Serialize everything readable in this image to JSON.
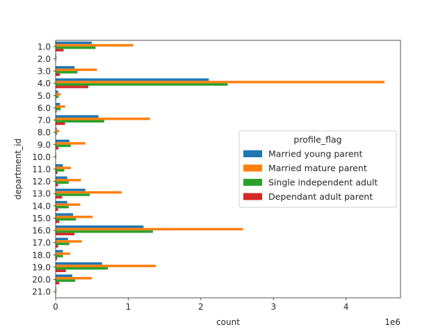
{
  "chart_data": {
    "type": "bar",
    "orientation": "horizontal",
    "xlabel": "count",
    "ylabel": "department_id",
    "x_offset_label": "1e6",
    "x_scale": 1000000,
    "xlim": [
      0,
      4.75
    ],
    "x_ticks": [
      0,
      1,
      2,
      3,
      4
    ],
    "categories": [
      "1.0",
      "2.0",
      "3.0",
      "4.0",
      "5.0",
      "6.0",
      "7.0",
      "8.0",
      "9.0",
      "10.0",
      "11.0",
      "12.0",
      "13.0",
      "14.0",
      "15.0",
      "16.0",
      "17.0",
      "18.0",
      "19.0",
      "20.0",
      "21.0"
    ],
    "legend": {
      "title": "profile_flag",
      "position": "center-right"
    },
    "grid": false,
    "series": [
      {
        "name": "Married young parent",
        "color": "#1f77b4",
        "values": [
          0.5,
          0.007,
          0.26,
          2.11,
          0.035,
          0.06,
          0.59,
          0.015,
          0.19,
          0.006,
          0.1,
          0.16,
          0.41,
          0.16,
          0.24,
          1.21,
          0.17,
          0.1,
          0.64,
          0.23,
          0.007
        ]
      },
      {
        "name": "Married mature parent",
        "color": "#ff7f0e",
        "values": [
          1.07,
          0.014,
          0.57,
          4.53,
          0.07,
          0.13,
          1.3,
          0.05,
          0.41,
          0.01,
          0.21,
          0.35,
          0.91,
          0.34,
          0.51,
          2.58,
          0.36,
          0.2,
          1.38,
          0.5,
          0.013
        ]
      },
      {
        "name": "Single independent adult",
        "color": "#2ca02c",
        "values": [
          0.55,
          0.007,
          0.3,
          2.37,
          0.04,
          0.07,
          0.67,
          0.018,
          0.21,
          0.007,
          0.12,
          0.18,
          0.47,
          0.18,
          0.28,
          1.34,
          0.19,
          0.1,
          0.72,
          0.27,
          0.007
        ]
      },
      {
        "name": "Dependant adult parent",
        "color": "#d62728",
        "values": [
          0.11,
          0.002,
          0.06,
          0.45,
          0.008,
          0.014,
          0.13,
          0.004,
          0.04,
          0.002,
          0.025,
          0.035,
          0.09,
          0.035,
          0.05,
          0.26,
          0.035,
          0.02,
          0.14,
          0.05,
          0.002
        ]
      }
    ]
  }
}
